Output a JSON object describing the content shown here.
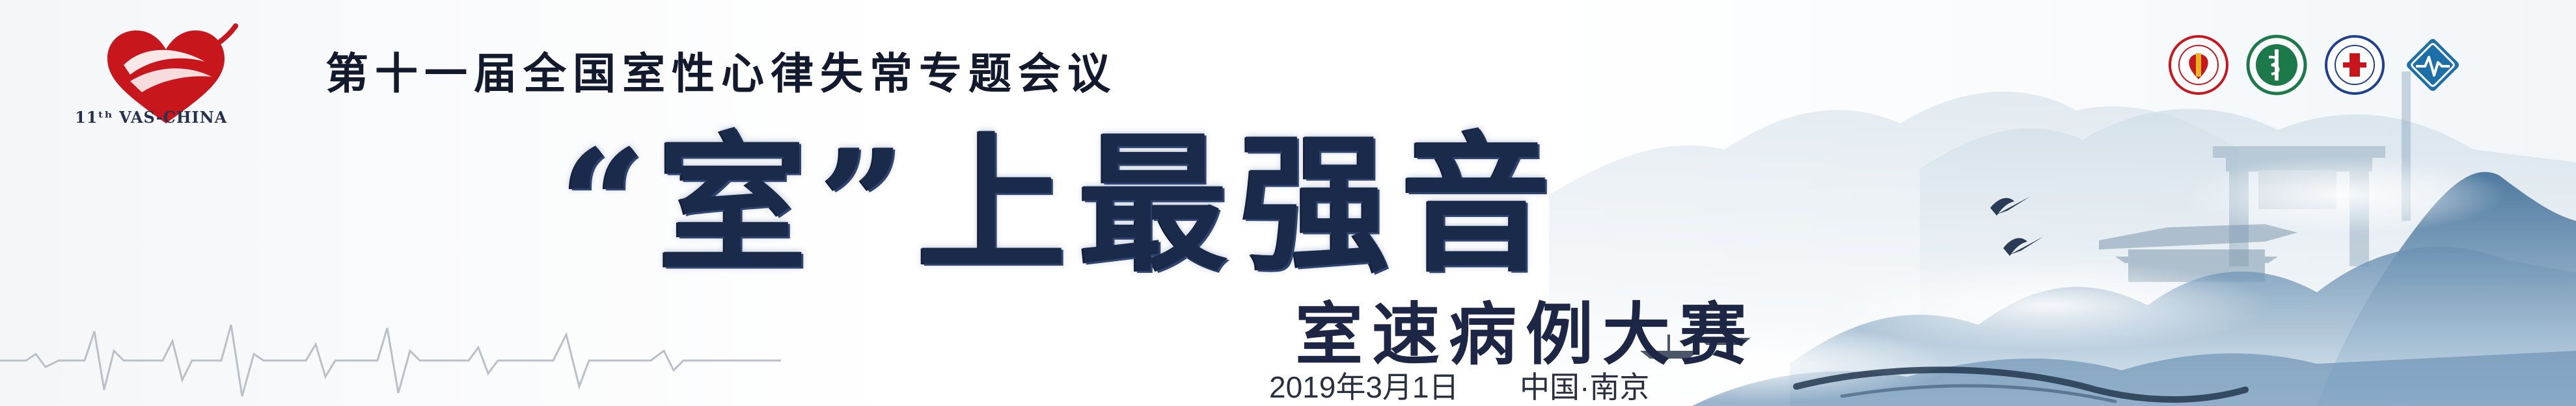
{
  "brand": {
    "text": "11ᵗʰ VAS-CHINA",
    "color": "#c8161d"
  },
  "conference": {
    "title": "第十一届全国室性心律失常专题会议"
  },
  "headline": {
    "text": "“室”上最强音"
  },
  "subtitle": {
    "text": "室速病例大赛"
  },
  "event": {
    "date": "2019年3月1日",
    "location": "中国·南京"
  },
  "partners": [
    {
      "icon": "society-badge-icon",
      "color": "#c8161d"
    },
    {
      "icon": "cma-badge-icon",
      "color": "#1c7a4a"
    },
    {
      "icon": "medical-association-badge-icon",
      "color": "#1f3f8f"
    },
    {
      "icon": "heart-rhythm-diamond-icon",
      "color": "#1d6fa8"
    }
  ],
  "colors": {
    "title": "#141a2e",
    "headline": "#1a2a4a",
    "mountain": "#9fbcd0"
  }
}
